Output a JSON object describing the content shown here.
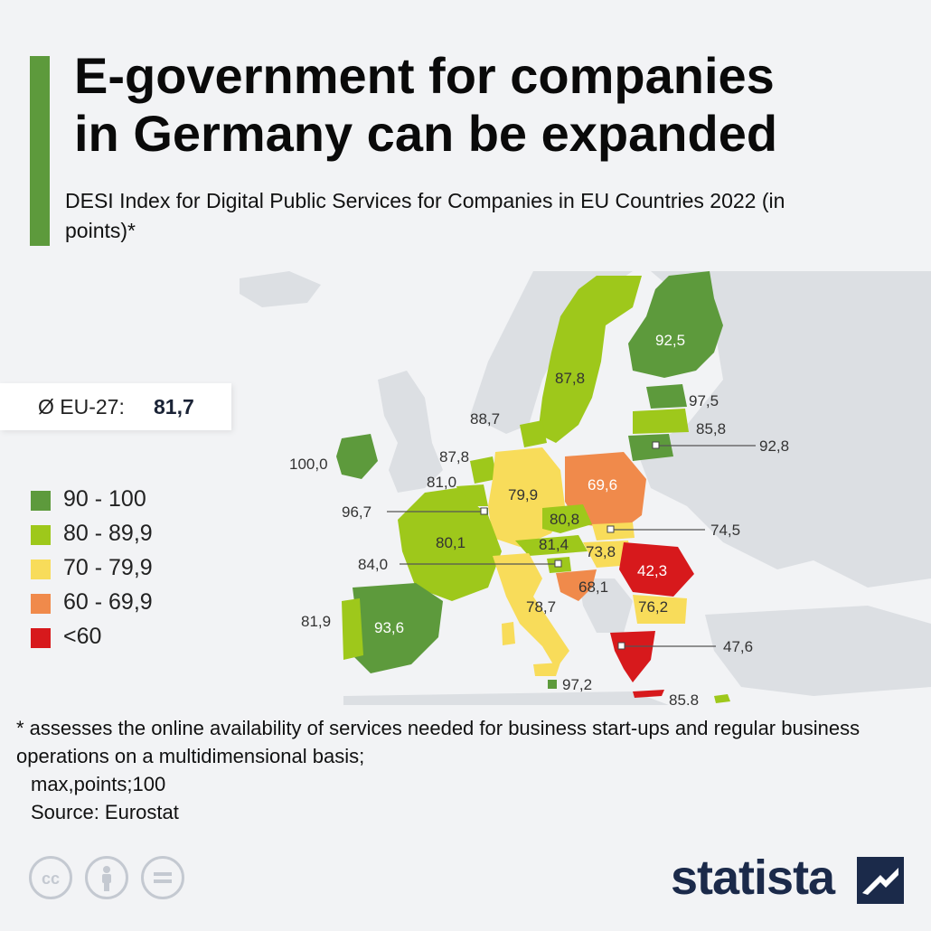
{
  "title": {
    "line1": "E-government for companies",
    "line2": "in Germany can be expanded"
  },
  "subtitle": "DESI Index for Digital Public Services for Companies in EU Countries 2022 (in points)*",
  "eu_average": {
    "label": "Ø EU-27:",
    "value": "81,7"
  },
  "legend": [
    {
      "label": "90 - 100",
      "color": "#5d9a3c"
    },
    {
      "label": "80 - 89,9",
      "color": "#9ec81b"
    },
    {
      "label": "70 - 79,9",
      "color": "#f8dc5a"
    },
    {
      "label": "60 - 69,9",
      "color": "#f08a4b"
    },
    {
      "label": "<60",
      "color": "#d7191c"
    }
  ],
  "map_labels": {
    "finland": "92,5",
    "sweden": "87,8",
    "estonia": "97,5",
    "latvia": "85,8",
    "lithuania": "92,8",
    "denmark": "88,7",
    "ireland": "100,0",
    "netherlands": "87,8",
    "belgium": "81,0",
    "luxembourg": "96,7",
    "germany": "79,9",
    "poland": "69,6",
    "czechia": "80,8",
    "slovakia": "74,5",
    "austria": "81,4",
    "hungary": "73,8",
    "slovenia": "84,0",
    "croatia": "68,1",
    "romania": "42,3",
    "bulgaria": "76,2",
    "greece": "47,6",
    "france": "80,1",
    "spain": "93,6",
    "portugal": "81,9",
    "italy": "78,7",
    "malta": "97,2",
    "cyprus": "85,8"
  },
  "footnote": {
    "line1": "* assesses the online availability of services needed for business start-ups and regular business operations on a multidimensional basis;",
    "line2": "max,points;100",
    "line3": "Source: Eurostat"
  },
  "brand": {
    "name": "statista"
  },
  "colors": {
    "accent": "#5d9a3c",
    "band_90_100": "#5d9a3c",
    "band_80_89": "#9ec81b",
    "band_70_79": "#f8dc5a",
    "band_60_69": "#f08a4b",
    "band_below_60": "#d7191c",
    "non_eu": "#dcdfe3",
    "brand": "#1b2a4a"
  },
  "icons": [
    "cc-icon",
    "attribution-icon",
    "no-derivatives-icon",
    "statista-logo-icon"
  ]
}
